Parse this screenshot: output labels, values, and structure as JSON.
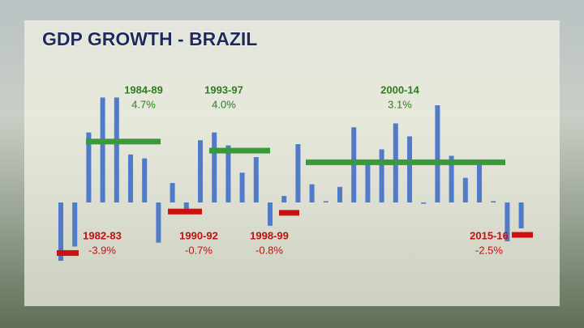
{
  "chart_data": {
    "type": "bar",
    "title": "GDP GROWTH - BRAZIL",
    "categories": [
      null,
      null,
      null,
      null,
      null,
      null,
      null,
      null,
      null,
      null,
      null,
      null,
      null,
      null,
      null,
      null,
      null,
      null,
      null,
      null,
      null,
      null,
      null,
      null,
      null,
      null,
      null,
      null,
      null,
      null,
      null,
      null,
      null,
      null
    ],
    "values": [
      -4.5,
      -3.4,
      5.4,
      8.1,
      8.1,
      3.7,
      3.4,
      -3.1,
      1.5,
      -0.5,
      4.8,
      5.4,
      4.4,
      2.3,
      3.5,
      -1.8,
      0.5,
      4.5,
      1.4,
      0.1,
      1.2,
      5.8,
      3.2,
      4.1,
      6.1,
      5.1,
      -0.1,
      7.5,
      3.6,
      1.9,
      3.0,
      0.1,
      -3.0,
      -2.0
    ],
    "color": "#4f7bc8",
    "ylim": [
      -5,
      9
    ],
    "averages": [
      {
        "label": "1982-83",
        "value": -3.9,
        "value_label": "-3.9%",
        "color": "#cc1111"
      },
      {
        "label": "1984-89",
        "value": 4.7,
        "value_label": "4.7%",
        "color": "#3a9a3a"
      },
      {
        "label": "1990-92",
        "value": -0.7,
        "value_label": "-0.7%",
        "color": "#cc1111"
      },
      {
        "label": "1993-97",
        "value": 4.0,
        "value_label": "4.0%",
        "color": "#3a9a3a"
      },
      {
        "label": "1998-99",
        "value": -0.8,
        "value_label": "-0.8%",
        "color": "#cc1111"
      },
      {
        "label": "2000-14",
        "value": 3.1,
        "value_label": "3.1%",
        "color": "#3a9a3a"
      },
      {
        "label": "2015-16",
        "value": -2.5,
        "value_label": "-2.5%",
        "color": "#cc1111"
      }
    ]
  }
}
